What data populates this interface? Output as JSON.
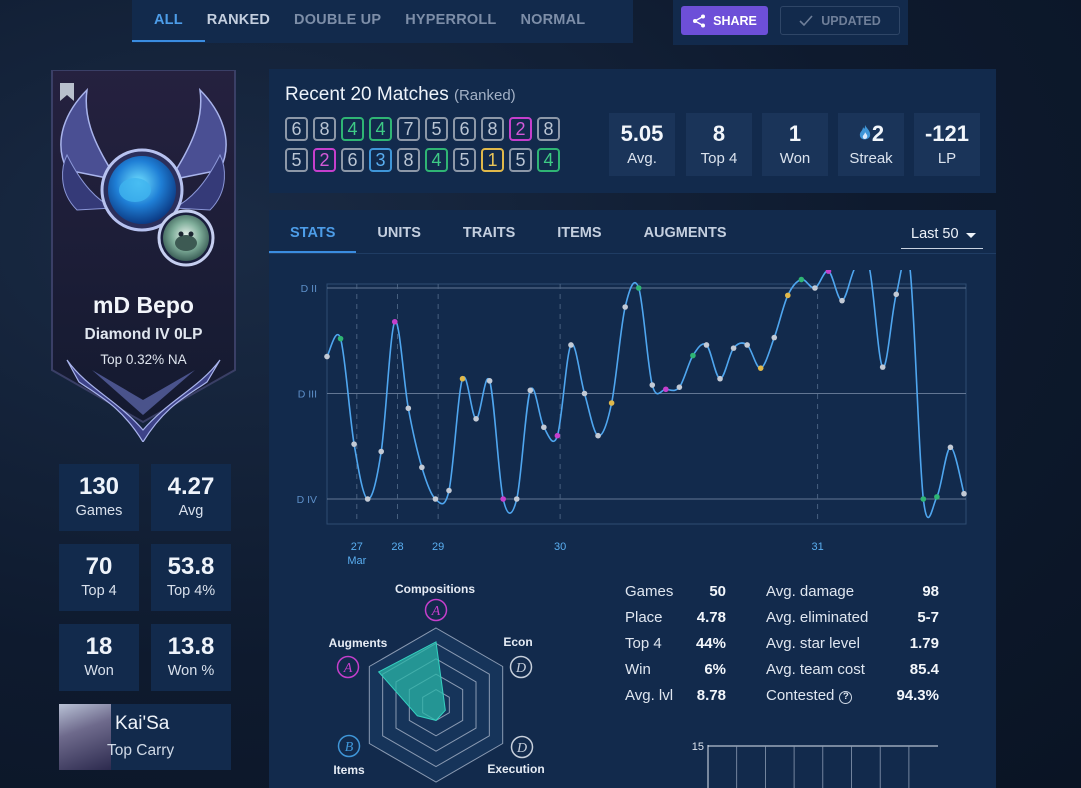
{
  "mode_tabs": [
    {
      "label": "ALL",
      "active": true
    },
    {
      "label": "RANKED",
      "active": false
    },
    {
      "label": "DOUBLE UP",
      "active": false
    },
    {
      "label": "HYPERROLL",
      "active": false
    },
    {
      "label": "NORMAL",
      "active": false
    }
  ],
  "actions": {
    "share": "SHARE",
    "updated": "UPDATED"
  },
  "profile": {
    "name": "mD Bepo",
    "rank": "Diamond IV 0LP",
    "ladder": "Top 0.32% NA"
  },
  "side_stats": [
    {
      "value": "130",
      "label": "Games"
    },
    {
      "value": "4.27",
      "label": "Avg"
    },
    {
      "value": "70",
      "label": "Top 4"
    },
    {
      "value": "53.8",
      "label": "Top 4%"
    },
    {
      "value": "18",
      "label": "Won"
    },
    {
      "value": "13.8",
      "label": "Won %"
    }
  ],
  "top_carry": {
    "name": "Kai'Sa",
    "label": "Top Carry"
  },
  "recent": {
    "title": "Recent 20 Matches",
    "subtitle": "(Ranked)",
    "placements": [
      6,
      8,
      4,
      4,
      7,
      5,
      6,
      8,
      2,
      8,
      5,
      2,
      6,
      3,
      8,
      4,
      5,
      1,
      5,
      4
    ],
    "summary": [
      {
        "value": "5.05",
        "label": "Avg."
      },
      {
        "value": "8",
        "label": "Top 4"
      },
      {
        "value": "1",
        "label": "Won"
      },
      {
        "value": "2",
        "label": "Streak"
      },
      {
        "value": "-121",
        "label": "LP"
      }
    ]
  },
  "stats_tabs": [
    {
      "label": "STATS",
      "active": true
    },
    {
      "label": "UNITS",
      "active": false
    },
    {
      "label": "TRAITS",
      "active": false
    },
    {
      "label": "ITEMS",
      "active": false
    },
    {
      "label": "AUGMENTS",
      "active": false
    }
  ],
  "range_select": "Last 50",
  "chart_data": [
    {
      "type": "line",
      "y_ticks": [
        "D II",
        "D III",
        "D IV"
      ],
      "ylim": [
        0,
        200
      ],
      "x_ticks": [
        {
          "x": 2,
          "label": "27"
        },
        {
          "x": 5,
          "label": "28"
        },
        {
          "x": 8,
          "label": "29"
        },
        {
          "x": 17,
          "label": "30"
        },
        {
          "x": 36,
          "label": "31"
        }
      ],
      "x_month": "Mar",
      "grid": true,
      "values": [
        135,
        152,
        52,
        0,
        45,
        168,
        86,
        30,
        0,
        8,
        114,
        76,
        112,
        0,
        0,
        103,
        68,
        60,
        146,
        100,
        60,
        91,
        182,
        200,
        108,
        104,
        106,
        136,
        146,
        114,
        143,
        146,
        124,
        153,
        193,
        208,
        200,
        216,
        188,
        220,
        220,
        125,
        194,
        220,
        0,
        2,
        49,
        5
      ],
      "point_places": [
        5,
        4,
        5,
        6,
        5,
        2,
        5,
        6,
        6,
        6,
        1,
        5,
        5,
        2,
        5,
        5,
        6,
        2,
        5,
        6,
        5,
        1,
        5,
        4,
        6,
        2,
        6,
        4,
        5,
        5,
        5,
        5,
        1,
        6,
        1,
        4,
        6,
        2,
        6,
        5,
        2,
        5,
        5,
        6,
        4,
        4,
        5,
        5
      ],
      "series_color": "#4fa6ef"
    },
    {
      "type": "radar",
      "axes": [
        {
          "name": "Compositions",
          "grade": "A"
        },
        {
          "name": "Econ",
          "grade": "D"
        },
        {
          "name": "Execution",
          "grade": "D"
        },
        {
          "name": "Items",
          "grade": "B"
        },
        {
          "name": "Augments",
          "grade": "A"
        }
      ],
      "values": [
        0.82,
        0.12,
        0.14,
        0.28,
        0.86
      ]
    },
    {
      "type": "bar",
      "y_ticks": [
        "15"
      ]
    }
  ],
  "stats_left": [
    {
      "label": "Games",
      "value": "50"
    },
    {
      "label": "Place",
      "value": "4.78"
    },
    {
      "label": "Top 4",
      "value": "44%"
    },
    {
      "label": "Win",
      "value": "6%"
    },
    {
      "label": "Avg. lvl",
      "value": "8.78"
    }
  ],
  "stats_right": [
    {
      "label": "Avg. damage",
      "value": "98"
    },
    {
      "label": "Avg. eliminated",
      "value": "5-7"
    },
    {
      "label": "Avg. star level",
      "value": "1.79"
    },
    {
      "label": "Avg. team cost",
      "value": "85.4"
    },
    {
      "label": "Contested",
      "value": "94.3%",
      "help": true
    }
  ],
  "colors": {
    "panel": "#122a4c",
    "accent": "#3a8ce0",
    "share": "#6d4fd8",
    "first": "#e0b84a",
    "second": "#c53fcc",
    "third": "#3f96d8",
    "top4": "#2fb574",
    "other": "#8d98a8"
  }
}
